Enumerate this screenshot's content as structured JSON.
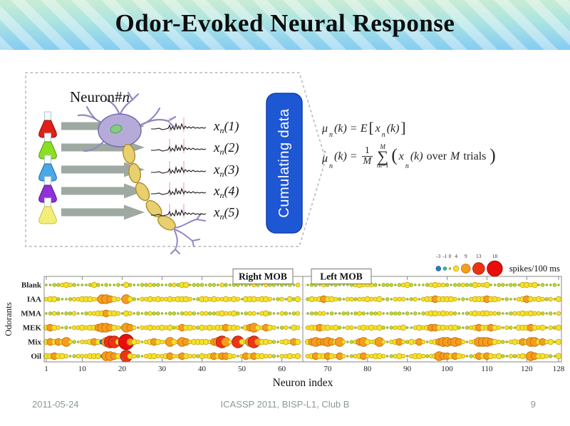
{
  "slide": {
    "title": "Odor-Evoked Neural Response",
    "footer": {
      "date": "2011-05-24",
      "center": "ICASSP 2011, BISP-L1, Club B",
      "page": "9"
    }
  },
  "diagram": {
    "neuron_label": {
      "main": "Neuron#",
      "sub": "n"
    },
    "flask_colors": [
      "#e02018",
      "#8ae020",
      "#48a8e8",
      "#9030d8",
      "#f2ee78"
    ],
    "flask_strokes": [
      "#901008",
      "#4f9a0e",
      "#1d6eaa",
      "#5c1590",
      "#c8c23c"
    ],
    "trace_labels": [
      {
        "base": "x",
        "sub": "n",
        "arg": "(1)"
      },
      {
        "base": "x",
        "sub": "n",
        "arg": "(2)"
      },
      {
        "base": "x",
        "sub": "n",
        "arg": "(3)"
      },
      {
        "base": "x",
        "sub": "n",
        "arg": "(4)"
      },
      {
        "base": "x",
        "sub": "n",
        "arg": "(5)"
      }
    ],
    "cumulating_box": {
      "label": "Cumulating data",
      "fill": "#1e57d4",
      "stroke": "#1240aa"
    }
  },
  "equations": {
    "line1": {
      "mu": "μ",
      "sub1": "n",
      "arg1": "(k)",
      "equals": "=",
      "E": "E",
      "lbracket": "[",
      "x": "x",
      "sub2": "n",
      "arg2": "(k)",
      "rbracket": "]"
    },
    "line2": {
      "hat": "ˆ",
      "mu": "μ",
      "sub1": "n",
      "arg1": "(k)",
      "equals": "=",
      "num": "1",
      "den": "M",
      "sum_upper": "M",
      "sum": "∑",
      "sum_lower": "m=1",
      "lparen": "(",
      "x": "x",
      "sub2": "n",
      "arg2": "(k)",
      "over": "over",
      "M": "M",
      "trials": "trials",
      "rparen": ")"
    }
  },
  "chart_data": {
    "type": "bubble",
    "xlabel": "Neuron index",
    "ylabel": "Odorants",
    "rows": [
      "Blank",
      "IAA",
      "MMA",
      "MEK",
      "Mix",
      "Oil"
    ],
    "panels": [
      {
        "label": "Right MOB",
        "range": [
          1,
          64
        ]
      },
      {
        "label": "Left MOB",
        "range": [
          65,
          128
        ]
      }
    ],
    "x_ticks_left": [
      1,
      10,
      20,
      30,
      40,
      50,
      60
    ],
    "x_ticks_right": [
      70,
      80,
      90,
      100,
      110,
      120,
      128
    ],
    "legend": {
      "values": [
        -3,
        -1,
        0,
        4,
        9,
        13,
        18
      ],
      "label": "spikes/100 ms"
    },
    "color_scale": [
      {
        "lt": -2,
        "fill": "#1f80d8",
        "stroke": "#10559c"
      },
      {
        "lt": 0,
        "fill": "#39b9a9",
        "stroke": "#1a8577"
      },
      {
        "lt": 2,
        "fill": "#c2d92e",
        "stroke": "#8fa318"
      },
      {
        "lt": 6,
        "fill": "#f2e428",
        "stroke": "#cfa11e"
      },
      {
        "lt": 11,
        "fill": "#f69d1c",
        "stroke": "#c06a0e"
      },
      {
        "lt": 15,
        "fill": "#ee3312",
        "stroke": "#a31306"
      },
      {
        "lt": 99,
        "fill": "#e90d0c",
        "stroke": "#990503"
      }
    ],
    "values": {
      "Blank": [
        0,
        0,
        1,
        1,
        2,
        4,
        2,
        1,
        0,
        0,
        0,
        1,
        4,
        1,
        0,
        1,
        0,
        0,
        1,
        0,
        4,
        1,
        0,
        0,
        1,
        1,
        2,
        1,
        1,
        0,
        0,
        1,
        2,
        1,
        4,
        4,
        0,
        1,
        1,
        1,
        0,
        1,
        1,
        0,
        2,
        1,
        0,
        1,
        1,
        0,
        1,
        0,
        2,
        1,
        0,
        2,
        1,
        1,
        0,
        1,
        0,
        1,
        0,
        2,
        0,
        1,
        1,
        0,
        2,
        1,
        0,
        1,
        0,
        0,
        0,
        1,
        2,
        4,
        2,
        2,
        2,
        1,
        0,
        1,
        1,
        1,
        0,
        1,
        2,
        4,
        1,
        0,
        0,
        0,
        1,
        2,
        4,
        2,
        2,
        1,
        0,
        1,
        1,
        2,
        1,
        1,
        4,
        2,
        2,
        4,
        0,
        0,
        1,
        1,
        0,
        1,
        1,
        0,
        4,
        4,
        2,
        4,
        0,
        1,
        0,
        0,
        1,
        0
      ],
      "IAA": [
        2,
        4,
        4,
        1,
        0,
        0,
        1,
        2,
        2,
        4,
        4,
        4,
        2,
        2,
        9,
        9,
        6,
        4,
        2,
        0,
        9,
        4,
        1,
        0,
        2,
        2,
        4,
        2,
        4,
        2,
        2,
        4,
        2,
        4,
        4,
        4,
        2,
        0,
        1,
        4,
        4,
        2,
        4,
        2,
        2,
        4,
        2,
        4,
        2,
        0,
        4,
        4,
        4,
        2,
        4,
        4,
        2,
        0,
        1,
        2,
        0,
        4,
        1,
        4,
        1,
        4,
        2,
        4,
        6,
        4,
        4,
        2,
        1,
        0,
        2,
        2,
        1,
        2,
        2,
        4,
        2,
        2,
        4,
        0,
        1,
        0,
        2,
        2,
        2,
        0,
        1,
        2,
        0,
        2,
        4,
        4,
        6,
        4,
        4,
        4,
        4,
        2,
        0,
        1,
        0,
        2,
        4,
        4,
        4,
        6,
        4,
        4,
        2,
        0,
        1,
        0,
        0,
        2,
        4,
        6,
        4,
        2,
        4,
        2,
        1,
        2,
        0,
        4
      ],
      "MMA": [
        0,
        1,
        2,
        1,
        0,
        1,
        1,
        2,
        0,
        0,
        1,
        2,
        2,
        4,
        4,
        6,
        4,
        4,
        2,
        0,
        4,
        2,
        0,
        1,
        0,
        1,
        2,
        1,
        1,
        0,
        0,
        1,
        1,
        0,
        1,
        2,
        2,
        1,
        0,
        2,
        2,
        1,
        1,
        2,
        4,
        2,
        2,
        4,
        1,
        0,
        1,
        2,
        2,
        0,
        2,
        4,
        1,
        0,
        0,
        2,
        1,
        0,
        1,
        2,
        0,
        1,
        1,
        2,
        2,
        0,
        1,
        0,
        0,
        1,
        1,
        0,
        1,
        2,
        1,
        0,
        1,
        1,
        2,
        0,
        0,
        1,
        1,
        1,
        0,
        1,
        0,
        1,
        0,
        1,
        2,
        4,
        4,
        2,
        4,
        2,
        2,
        1,
        0,
        0,
        1,
        2,
        4,
        2,
        4,
        4,
        2,
        2,
        1,
        0,
        0,
        1,
        2,
        2,
        4,
        2,
        4,
        2,
        2,
        1,
        0,
        1,
        0,
        2
      ],
      "MEK": [
        4,
        6,
        4,
        2,
        0,
        1,
        0,
        2,
        2,
        4,
        2,
        4,
        4,
        6,
        9,
        9,
        6,
        4,
        2,
        1,
        9,
        6,
        2,
        0,
        2,
        2,
        4,
        2,
        2,
        4,
        2,
        4,
        1,
        2,
        6,
        4,
        4,
        2,
        1,
        4,
        2,
        4,
        2,
        4,
        4,
        6,
        4,
        4,
        2,
        0,
        4,
        6,
        9,
        4,
        2,
        6,
        4,
        2,
        0,
        1,
        2,
        0,
        4,
        2,
        2,
        4,
        4,
        6,
        4,
        4,
        2,
        4,
        1,
        0,
        2,
        2,
        0,
        2,
        4,
        2,
        4,
        2,
        4,
        1,
        0,
        1,
        2,
        2,
        4,
        0,
        0,
        2,
        4,
        2,
        4,
        6,
        6,
        4,
        4,
        2,
        4,
        4,
        1,
        0,
        1,
        2,
        4,
        6,
        4,
        4,
        6,
        4,
        2,
        0,
        2,
        1,
        0,
        4,
        4,
        4,
        6,
        4,
        2,
        4,
        0,
        2,
        1,
        4
      ],
      "Mix": [
        4,
        6,
        4,
        6,
        4,
        9,
        2,
        1,
        0,
        2,
        2,
        4,
        6,
        4,
        -3,
        9,
        13,
        13,
        4,
        6,
        18,
        6,
        4,
        2,
        0,
        2,
        4,
        6,
        4,
        2,
        2,
        9,
        4,
        2,
        9,
        6,
        2,
        4,
        4,
        4,
        4,
        2,
        6,
        9,
        13,
        9,
        2,
        0,
        13,
        4,
        2,
        9,
        13,
        6,
        4,
        4,
        2,
        1,
        0,
        2,
        4,
        2,
        6,
        4,
        4,
        6,
        9,
        6,
        6,
        9,
        6,
        4,
        9,
        2,
        0,
        1,
        2,
        6,
        9,
        4,
        2,
        4,
        9,
        2,
        0,
        2,
        4,
        6,
        2,
        1,
        4,
        2,
        6,
        2,
        0,
        2,
        4,
        6,
        9,
        9,
        6,
        9,
        6,
        2,
        0,
        2,
        4,
        9,
        9,
        9,
        6,
        4,
        2,
        1,
        0,
        2,
        4,
        2,
        6,
        4,
        9,
        9,
        4,
        6,
        2,
        4,
        0,
        4
      ],
      "Oil": [
        4,
        4,
        6,
        4,
        4,
        2,
        0,
        1,
        2,
        2,
        2,
        4,
        4,
        4,
        -1,
        9,
        9,
        6,
        4,
        2,
        13,
        4,
        2,
        1,
        0,
        2,
        4,
        4,
        2,
        2,
        4,
        6,
        2,
        2,
        6,
        4,
        2,
        2,
        1,
        4,
        2,
        4,
        6,
        4,
        6,
        6,
        4,
        2,
        0,
        2,
        6,
        4,
        6,
        4,
        4,
        2,
        2,
        1,
        0,
        2,
        2,
        4,
        2,
        4,
        2,
        4,
        6,
        4,
        4,
        6,
        4,
        2,
        6,
        2,
        0,
        1,
        2,
        4,
        6,
        2,
        2,
        4,
        4,
        2,
        0,
        1,
        2,
        4,
        2,
        0,
        2,
        4,
        4,
        2,
        1,
        2,
        4,
        9,
        6,
        6,
        4,
        6,
        4,
        2,
        0,
        1,
        2,
        6,
        4,
        6,
        4,
        2,
        4,
        1,
        0,
        2,
        1,
        2,
        4,
        2,
        9,
        6,
        4,
        4,
        2,
        1,
        0,
        4
      ]
    }
  }
}
